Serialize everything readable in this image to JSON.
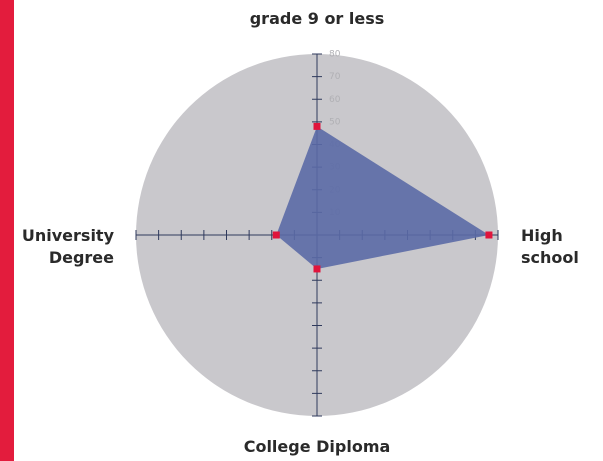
{
  "chart_data": {
    "type": "radar",
    "categories": [
      "grade 9 or less",
      "High school",
      "College Diploma",
      "University Degree"
    ],
    "values": [
      48,
      76,
      15,
      18
    ],
    "color": "#5b6aa6",
    "marker_color": "#e0143c",
    "background_color": "#c9c8cc",
    "ylim": [
      0,
      80
    ],
    "yticks": [
      10,
      20,
      30,
      40,
      50,
      60,
      70,
      80
    ]
  }
}
